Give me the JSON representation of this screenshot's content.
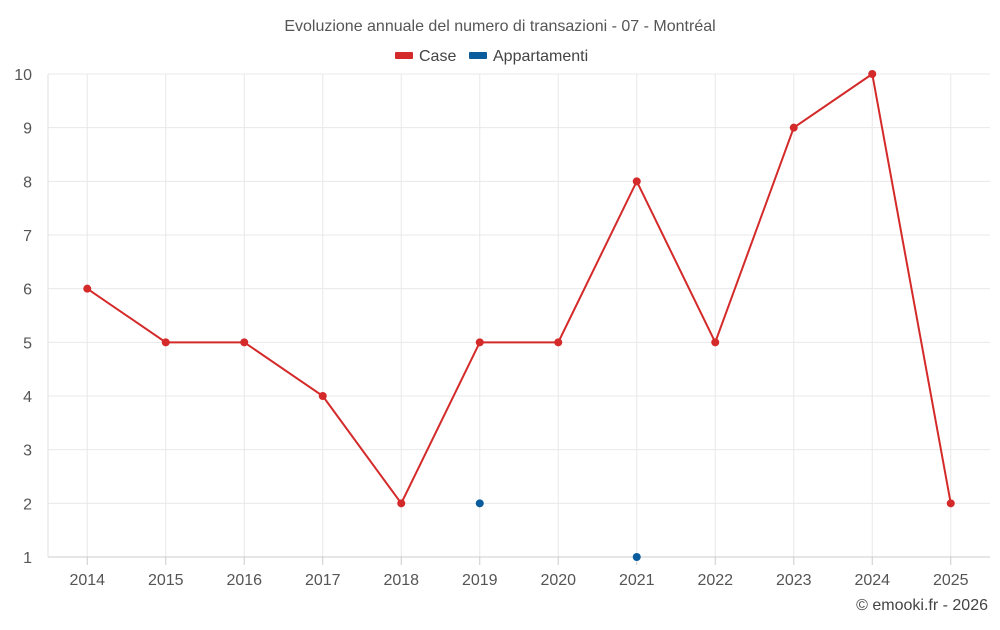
{
  "chart_data": {
    "type": "line",
    "title": "Evoluzione annuale del numero di transazioni - 07 - Montréal",
    "xlabel": "",
    "ylabel": "",
    "categories": [
      "2014",
      "2015",
      "2016",
      "2017",
      "2018",
      "2019",
      "2020",
      "2021",
      "2022",
      "2023",
      "2024",
      "2025"
    ],
    "ylim": [
      1,
      10
    ],
    "yticks": [
      "1",
      "2",
      "3",
      "4",
      "5",
      "6",
      "7",
      "8",
      "9",
      "10"
    ],
    "grid": true,
    "legend_position": "top-center",
    "series": [
      {
        "name": "Case",
        "color": "#d42a2a",
        "values": [
          6,
          5,
          5,
          4,
          2,
          5,
          5,
          8,
          5,
          9,
          10,
          2
        ]
      },
      {
        "name": "Appartamenti",
        "color": "#0a5c9c",
        "values": [
          null,
          null,
          null,
          null,
          null,
          2,
          null,
          1,
          null,
          null,
          null,
          null
        ]
      }
    ]
  },
  "credit": "© emooki.fr - 2026"
}
